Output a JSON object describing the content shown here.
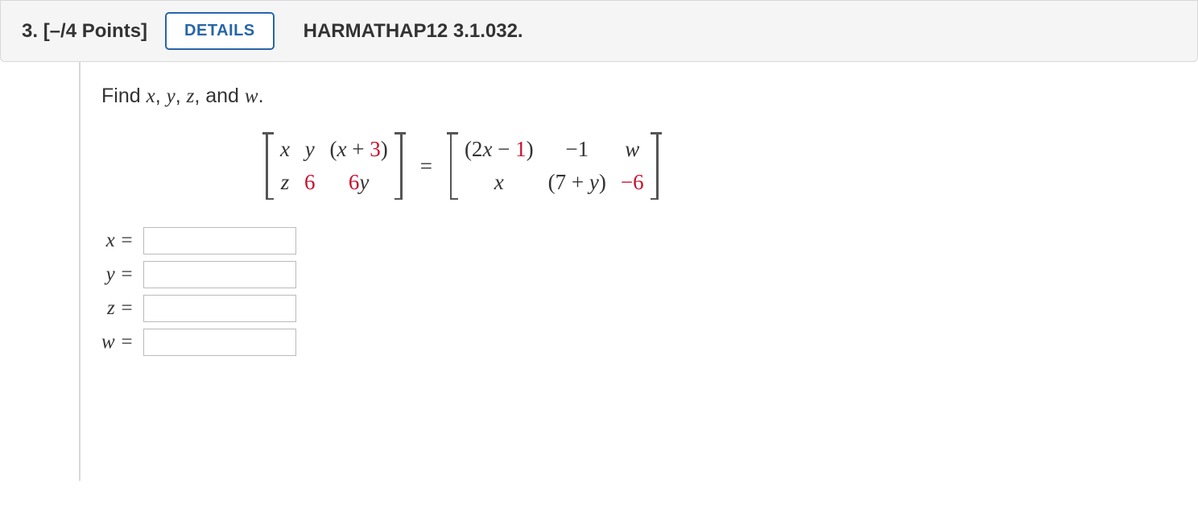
{
  "header": {
    "question_num": "3.",
    "points": "[–/4 Points]",
    "details_btn": "DETAILS",
    "reference": "HARMATHAP12 3.1.032."
  },
  "prompt": {
    "lead": "Find ",
    "v1": "x",
    "c1": ", ",
    "v2": "y",
    "c2": ", ",
    "v3": "z",
    "c3": ", and ",
    "v4": "w",
    "end": "."
  },
  "matrixA": {
    "r1c1": "x",
    "r1c2": "y",
    "r1c3_a": "(",
    "r1c3_b": "x",
    "r1c3_c": " + ",
    "r1c3_d": "3",
    "r1c3_e": ")",
    "r2c1": "z",
    "r2c2": "6",
    "r2c3_a": "6",
    "r2c3_b": "y"
  },
  "eq": "=",
  "matrixB": {
    "r1c1_a": "(2",
    "r1c1_b": "x",
    "r1c1_c": " − ",
    "r1c1_d": "1",
    "r1c1_e": ")",
    "r1c2": "−1",
    "r1c3": "w",
    "r2c1": "x",
    "r2c2_a": "(7 + ",
    "r2c2_b": "y",
    "r2c2_c": ")",
    "r2c3": "−6"
  },
  "answers": {
    "x_label": "x =",
    "y_label": "y =",
    "z_label": "z =",
    "w_label": "w ="
  },
  "colors": {
    "accent": "#2765a8",
    "red": "#c8102e",
    "header_bg": "#f5f5f5",
    "border": "#d8d8d8"
  }
}
